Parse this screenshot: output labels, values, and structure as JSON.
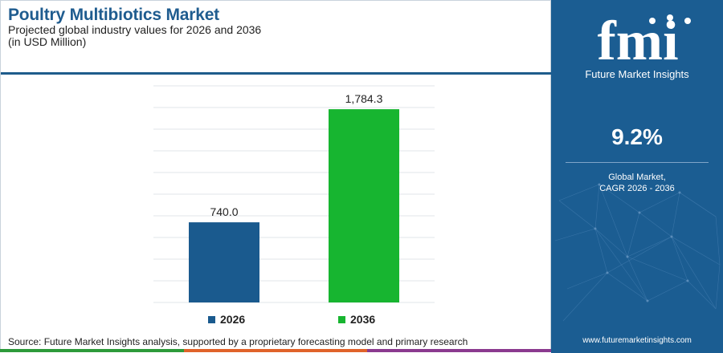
{
  "header": {
    "title": "Poultry Multibiotics Market",
    "subtitle": "Projected global industry values for 2026 and 2036",
    "unit": "(in USD Million)"
  },
  "chart_data": {
    "type": "bar",
    "categories": [
      "2026",
      "2036"
    ],
    "values": [
      740.0,
      1784.3
    ],
    "value_labels": [
      "740.0",
      "1,784.3"
    ],
    "colors": [
      "#1a5a8e",
      "#17b530"
    ],
    "title": "Poultry Multibiotics Market",
    "subtitle": "Projected global industry values for 2026 and 2036",
    "xlabel": "",
    "ylabel": "",
    "ylim": [
      0,
      2000
    ],
    "grid": true,
    "legend": "bottom"
  },
  "legend": {
    "items": [
      {
        "label": "2026",
        "color": "#1a5a8e"
      },
      {
        "label": "2036",
        "color": "#17b530"
      }
    ]
  },
  "footer": {
    "source": "Source: Future Market Insights analysis, supported by a proprietary forecasting model and primary research",
    "strip_colors": [
      "#2d9a3a",
      "#e0622a",
      "#8b3a8f"
    ]
  },
  "panel": {
    "background": "#1b5d92",
    "logo_text": "fmi",
    "logo_subtitle": "Future Market Insights",
    "cagr_value": "9.2%",
    "cagr_label_line1": "Global Market,",
    "cagr_label_line2": "CAGR 2026 - 2036",
    "website": "www.futuremarketinsights.com"
  }
}
